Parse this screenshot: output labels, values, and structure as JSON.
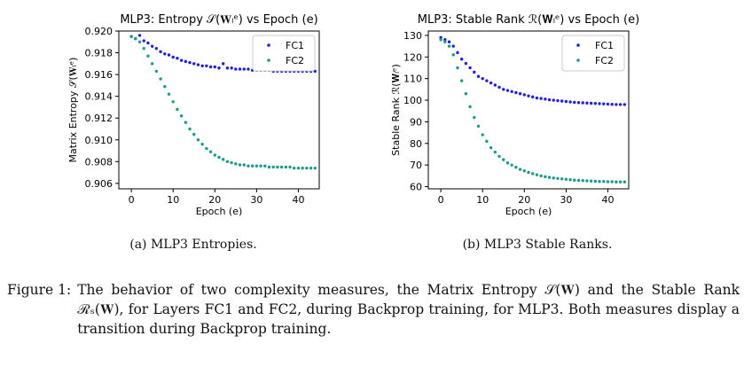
{
  "chart_data": [
    {
      "type": "scatter",
      "title": "MLP3:  Entropy 𝒮(𝐖ₗᵉ) vs Epoch (e)",
      "xlabel": "Epoch (e)",
      "ylabel": "Matrix Entropy 𝒮(𝐖ₗᵉ)",
      "xlim": [
        -3,
        45
      ],
      "ylim": [
        0.9055,
        0.92
      ],
      "xticks": [
        "0",
        "10",
        "20",
        "30",
        "40"
      ],
      "yticks": [
        "0.906",
        "0.908",
        "0.910",
        "0.912",
        "0.914",
        "0.916",
        "0.918",
        "0.920"
      ],
      "legend": "top-right",
      "grid": false,
      "series": [
        {
          "name": "FC1",
          "color": "#1f1fe0",
          "x": [
            0,
            1,
            2,
            3,
            4,
            5,
            6,
            7,
            8,
            9,
            10,
            11,
            12,
            13,
            14,
            15,
            16,
            17,
            18,
            19,
            20,
            21,
            22,
            23,
            24,
            25,
            26,
            27,
            28,
            29,
            30,
            31,
            32,
            33,
            34,
            35,
            36,
            37,
            38,
            39,
            40,
            41,
            42,
            43,
            44
          ],
          "y": [
            0.9195,
            0.9193,
            0.9196,
            0.9191,
            0.9189,
            0.9186,
            0.9184,
            0.9181,
            0.9179,
            0.9178,
            0.9176,
            0.9175,
            0.9173,
            0.9172,
            0.9171,
            0.917,
            0.9169,
            0.9168,
            0.9168,
            0.9167,
            0.9167,
            0.9166,
            0.917,
            0.9166,
            0.9166,
            0.9165,
            0.9165,
            0.9165,
            0.9165,
            0.9164,
            0.9164,
            0.9164,
            0.9164,
            0.9164,
            0.9163,
            0.9163,
            0.9163,
            0.9163,
            0.9163,
            0.9163,
            0.9163,
            0.9163,
            0.9163,
            0.9163,
            0.9163
          ]
        },
        {
          "name": "FC2",
          "color": "#1a9a8a",
          "x": [
            0,
            1,
            2,
            3,
            4,
            5,
            6,
            7,
            8,
            9,
            10,
            11,
            12,
            13,
            14,
            15,
            16,
            17,
            18,
            19,
            20,
            21,
            22,
            23,
            24,
            25,
            26,
            27,
            28,
            29,
            30,
            31,
            32,
            33,
            34,
            35,
            36,
            37,
            38,
            39,
            40,
            41,
            42,
            43,
            44
          ],
          "y": [
            0.9195,
            0.9193,
            0.919,
            0.9184,
            0.9177,
            0.917,
            0.9163,
            0.9156,
            0.9149,
            0.9142,
            0.9135,
            0.9128,
            0.9122,
            0.9116,
            0.911,
            0.9105,
            0.91,
            0.9096,
            0.9092,
            0.9089,
            0.9086,
            0.9084,
            0.9082,
            0.908,
            0.9079,
            0.9078,
            0.9077,
            0.9077,
            0.9076,
            0.9076,
            0.9076,
            0.9076,
            0.9076,
            0.9075,
            0.9075,
            0.9075,
            0.9075,
            0.9075,
            0.9075,
            0.9074,
            0.9074,
            0.9074,
            0.9074,
            0.9074,
            0.9074
          ]
        }
      ]
    },
    {
      "type": "scatter",
      "title": "MLP3:  Stable Rank ℛ(𝐖ₗᵉ) vs Epoch (e)",
      "xlabel": "Epoch (e)",
      "ylabel": "Stable Rank ℛ(𝐖ₗᵉ)",
      "xlim": [
        -3,
        45
      ],
      "ylim": [
        59,
        132
      ],
      "xticks": [
        "0",
        "10",
        "20",
        "30",
        "40"
      ],
      "yticks": [
        "60",
        "70",
        "80",
        "90",
        "100",
        "110",
        "120",
        "130"
      ],
      "legend": "top-right",
      "grid": false,
      "series": [
        {
          "name": "FC1",
          "color": "#1f1fe0",
          "x": [
            0,
            1,
            2,
            3,
            4,
            5,
            6,
            7,
            8,
            9,
            10,
            11,
            12,
            13,
            14,
            15,
            16,
            17,
            18,
            19,
            20,
            21,
            22,
            23,
            24,
            25,
            26,
            27,
            28,
            29,
            30,
            31,
            32,
            33,
            34,
            35,
            36,
            37,
            38,
            39,
            40,
            41,
            42,
            43,
            44
          ],
          "y": [
            129,
            128,
            127,
            125,
            122,
            119,
            117,
            115,
            113,
            111,
            110,
            109,
            108,
            107,
            106,
            105,
            104.5,
            104,
            103.5,
            103,
            102.5,
            102,
            101.5,
            101,
            100.8,
            100.5,
            100.2,
            100,
            99.8,
            99.6,
            99.4,
            99.2,
            99,
            98.9,
            98.8,
            98.7,
            98.6,
            98.5,
            98.4,
            98.3,
            98.2,
            98.1,
            98,
            98,
            98
          ]
        },
        {
          "name": "FC2",
          "color": "#1a9a8a",
          "x": [
            0,
            1,
            2,
            3,
            4,
            5,
            6,
            7,
            8,
            9,
            10,
            11,
            12,
            13,
            14,
            15,
            16,
            17,
            18,
            19,
            20,
            21,
            22,
            23,
            24,
            25,
            26,
            27,
            28,
            29,
            30,
            31,
            32,
            33,
            34,
            35,
            36,
            37,
            38,
            39,
            40,
            41,
            42,
            43,
            44
          ],
          "y": [
            128,
            127,
            125,
            121,
            115,
            109,
            103,
            97,
            92,
            88,
            84,
            81,
            78,
            76,
            74,
            72.5,
            71,
            70,
            69,
            68,
            67.3,
            66.6,
            66,
            65.5,
            65,
            64.6,
            64.3,
            64,
            63.8,
            63.6,
            63.4,
            63.2,
            63,
            62.9,
            62.8,
            62.7,
            62.6,
            62.5,
            62.4,
            62.4,
            62.3,
            62.3,
            62.2,
            62.2,
            62.2
          ]
        }
      ]
    }
  ],
  "captions": {
    "a": "(a) MLP3 Entropies.",
    "b": "(b) MLP3 Stable Ranks."
  },
  "figure": {
    "label": "Figure 1:",
    "text": "The behavior of two complexity measures, the Matrix Entropy 𝒮(𝐖) and the Stable Rank ℛₛ(𝐖), for Layers FC1 and FC2, during Backprop training, for MLP3. Both measures display a transition during Backprop training."
  }
}
